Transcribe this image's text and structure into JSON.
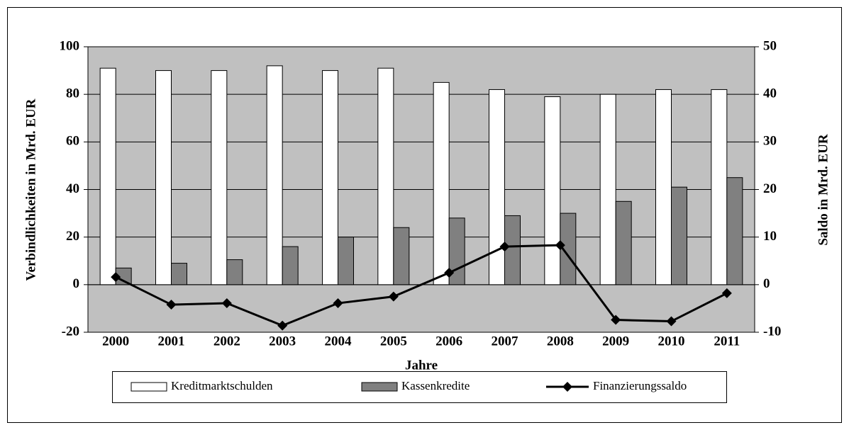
{
  "chart_data": {
    "type": "bar",
    "x_label": "Jahre",
    "y_label": "Verbindlichkeiten in Mrd. EUR",
    "y2_label": "Saldo in Mrd. EUR",
    "categories": [
      "2000",
      "2001",
      "2002",
      "2003",
      "2004",
      "2005",
      "2006",
      "2007",
      "2008",
      "2009",
      "2010",
      "2011"
    ],
    "series": [
      {
        "name": "Kreditmarktschulden",
        "type": "bar",
        "color": "#ffffff",
        "values": [
          91,
          90,
          90,
          92,
          90,
          91,
          85,
          82,
          79,
          80,
          82,
          82
        ]
      },
      {
        "name": "Kassenkredite",
        "type": "bar",
        "color": "#808080",
        "values": [
          7,
          9,
          10.5,
          16,
          20,
          24,
          28,
          29,
          30,
          35,
          41,
          45
        ]
      },
      {
        "name": "Finanzierungssaldo",
        "type": "line",
        "axis": "y2",
        "color": "#000000",
        "values": [
          1.6,
          -4.2,
          -3.9,
          -8.6,
          -3.9,
          -2.5,
          2.5,
          8.0,
          8.3,
          -7.4,
          -7.7,
          -1.8
        ]
      }
    ],
    "ylim": [
      -20,
      100
    ],
    "yticks": [
      -20,
      0,
      20,
      40,
      60,
      80,
      100
    ],
    "y2lim": [
      -10,
      50
    ],
    "y2ticks": [
      -10,
      0,
      10,
      20,
      30,
      40,
      50
    ],
    "grid": true,
    "legend": "bottom",
    "background": "#c0c0c0"
  }
}
